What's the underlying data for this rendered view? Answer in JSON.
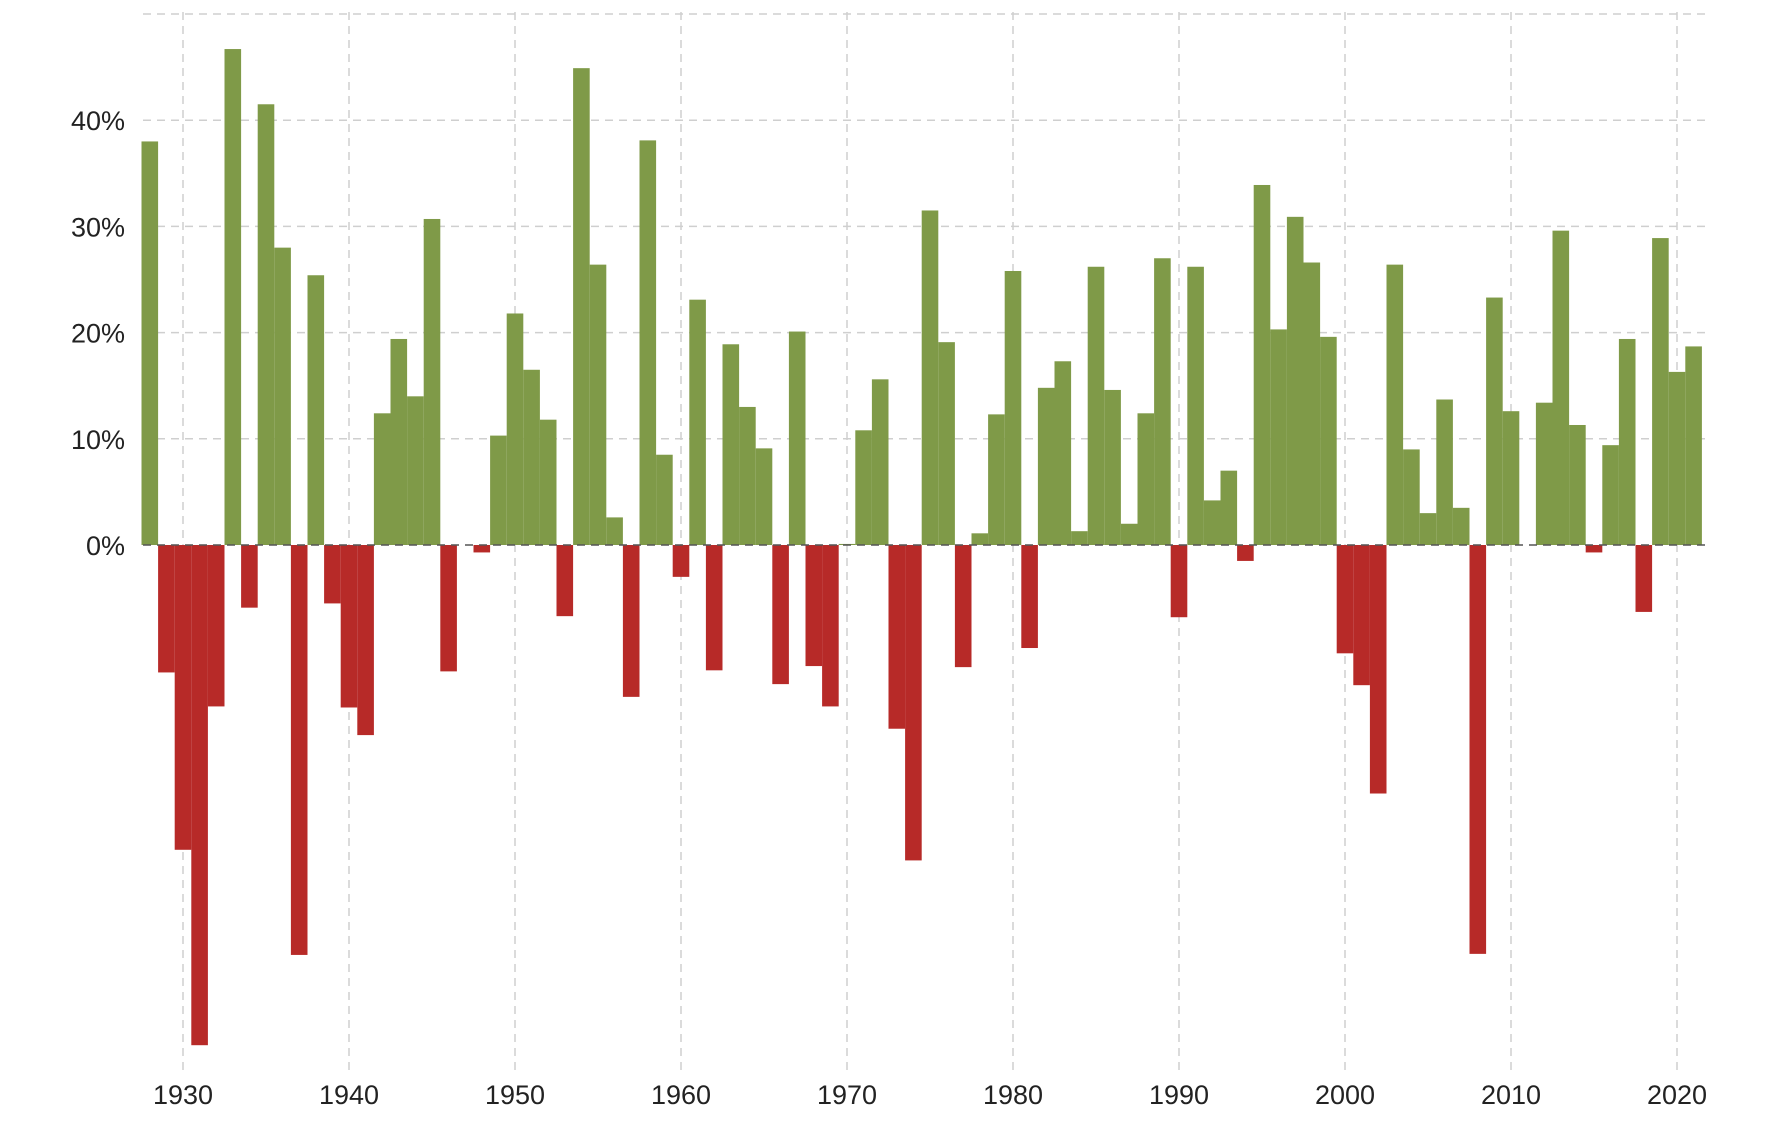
{
  "chart_data": {
    "type": "bar",
    "title": "",
    "xlabel": "",
    "ylabel": "",
    "ylim": [
      -50,
      50
    ],
    "xlim": [
      1927.5,
      2022
    ],
    "grid": true,
    "legend": "none",
    "x_ticks": [
      1930,
      1940,
      1950,
      1960,
      1970,
      1980,
      1990,
      2000,
      2010,
      2020
    ],
    "y_ticks": [
      0,
      10,
      20,
      30,
      40
    ],
    "y_tick_labels": [
      "0%",
      "10%",
      "20%",
      "30%",
      "40%"
    ],
    "x_tick_labels": [
      "1930",
      "1940",
      "1950",
      "1960",
      "1970",
      "1980",
      "1990",
      "2000",
      "2010",
      "2020"
    ],
    "colors": {
      "positive": "#7f9a48",
      "negative": "#b72a28"
    },
    "categories": [
      1928,
      1929,
      1930,
      1931,
      1932,
      1933,
      1934,
      1935,
      1936,
      1937,
      1938,
      1939,
      1940,
      1941,
      1942,
      1943,
      1944,
      1945,
      1946,
      1947,
      1948,
      1949,
      1950,
      1951,
      1952,
      1953,
      1954,
      1955,
      1956,
      1957,
      1958,
      1959,
      1960,
      1961,
      1962,
      1963,
      1964,
      1965,
      1966,
      1967,
      1968,
      1969,
      1970,
      1971,
      1972,
      1973,
      1974,
      1975,
      1976,
      1977,
      1978,
      1979,
      1980,
      1981,
      1982,
      1983,
      1984,
      1985,
      1986,
      1987,
      1988,
      1989,
      1990,
      1991,
      1992,
      1993,
      1994,
      1995,
      1996,
      1997,
      1998,
      1999,
      2000,
      2001,
      2002,
      2003,
      2004,
      2005,
      2006,
      2007,
      2008,
      2009,
      2010,
      2011,
      2012,
      2013,
      2014,
      2015,
      2016,
      2017,
      2018,
      2019,
      2020,
      2021
    ],
    "values": [
      38.0,
      -12.0,
      -28.7,
      -47.1,
      -15.2,
      46.7,
      -5.9,
      41.5,
      28.0,
      -38.6,
      25.4,
      -5.5,
      -15.3,
      -17.9,
      12.4,
      19.4,
      14.0,
      30.7,
      -11.9,
      0.0,
      -0.7,
      10.3,
      21.8,
      16.5,
      11.8,
      -6.7,
      44.9,
      26.4,
      2.6,
      -14.3,
      38.1,
      8.5,
      -3.0,
      23.1,
      -11.8,
      18.9,
      13.0,
      9.1,
      -13.1,
      20.1,
      -11.4,
      -15.2,
      0.1,
      10.8,
      15.6,
      -17.3,
      -29.7,
      31.5,
      19.1,
      -11.5,
      1.1,
      12.3,
      25.8,
      -9.7,
      14.8,
      17.3,
      1.3,
      26.2,
      14.6,
      2.0,
      12.4,
      27.0,
      -6.8,
      26.2,
      4.2,
      7.0,
      -1.5,
      33.9,
      20.3,
      30.9,
      26.6,
      19.6,
      -10.2,
      -13.2,
      -23.4,
      26.4,
      9.0,
      3.0,
      13.7,
      3.5,
      -38.5,
      23.3,
      12.6,
      0.0,
      13.4,
      29.6,
      11.3,
      -0.7,
      9.4,
      19.4,
      -6.3,
      28.9,
      16.3,
      18.7
    ]
  }
}
